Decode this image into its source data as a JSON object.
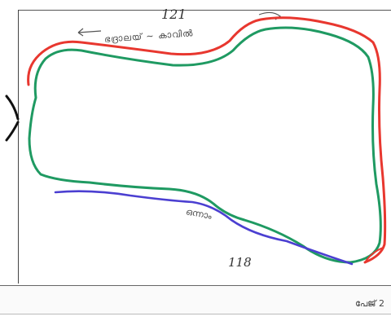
{
  "page": {
    "number_top": "121",
    "number_bottom": "118",
    "annotation_top": "ഭദ്രാലയ് ~ കാവിൽ",
    "annotation_mid": "ഒന്നാം",
    "plate_label": "പേജ് 2"
  },
  "colors": {
    "outer_outline": "#e8372f",
    "inner_outline": "#1f9a62",
    "bottom_route": "#4b3fd1",
    "frame": "#444444"
  }
}
